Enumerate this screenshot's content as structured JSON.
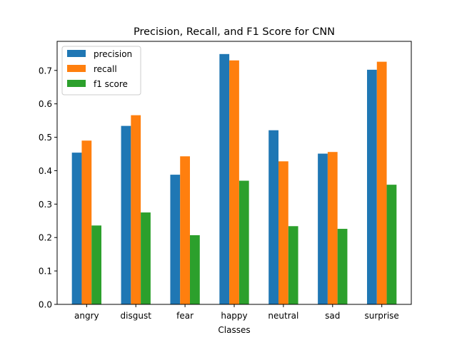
{
  "chart_data": {
    "type": "bar",
    "title": "Precision, Recall, and F1 Score for CNN",
    "xlabel": "Classes",
    "ylabel": "",
    "categories": [
      "angry",
      "disgust",
      "fear",
      "happy",
      "neutral",
      "sad",
      "surprise"
    ],
    "ylim": [
      0,
      0.787
    ],
    "yticks": [
      "0.0",
      "0.1",
      "0.2",
      "0.3",
      "0.4",
      "0.5",
      "0.6",
      "0.7"
    ],
    "grid": false,
    "legend_position": "top-left",
    "series": [
      {
        "name": "precision",
        "color": "#1f77b4",
        "values": [
          0.454,
          0.534,
          0.388,
          0.749,
          0.521,
          0.451,
          0.702
        ]
      },
      {
        "name": "recall",
        "color": "#ff7f0e",
        "values": [
          0.49,
          0.566,
          0.443,
          0.73,
          0.428,
          0.456,
          0.726
        ]
      },
      {
        "name": "f1 score",
        "color": "#2ca02c",
        "values": [
          0.236,
          0.275,
          0.207,
          0.37,
          0.234,
          0.226,
          0.358
        ]
      }
    ]
  }
}
